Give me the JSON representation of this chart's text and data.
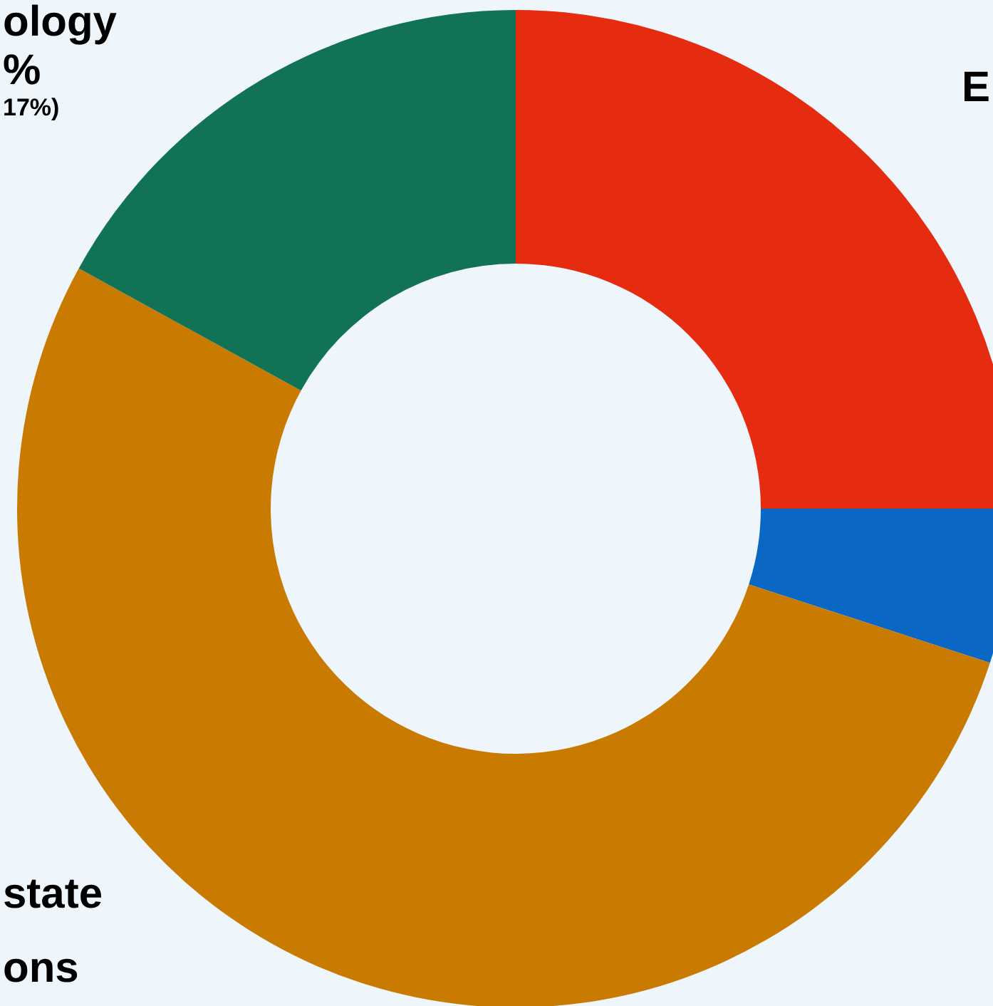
{
  "chart_data": {
    "type": "donut",
    "categories": [
      null,
      null,
      null,
      null
    ],
    "values": [
      25,
      5,
      53,
      17
    ],
    "colors": [
      "#e52b10",
      "#0a68c4",
      "#c97a00",
      "#127255"
    ],
    "annotations": [
      "ology",
      "%",
      "17%)",
      "E",
      "state",
      "ons"
    ]
  }
}
